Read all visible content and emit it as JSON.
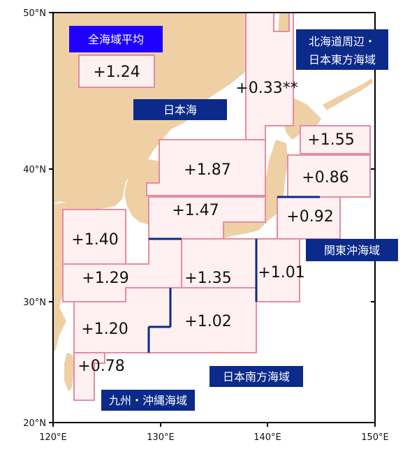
{
  "map": {
    "lat_labels": [
      "50°N",
      "40°N",
      "30°N",
      "20°N"
    ],
    "lon_labels": [
      "120°E",
      "130°E",
      "140°E",
      "150°E"
    ],
    "colors": {
      "land": "#efcfa4",
      "sea": "#ffffff",
      "region_fill": "#fff0f2",
      "region_stroke": "#e48da0",
      "label_bg": "#0b2a8a",
      "label_bg_strong": "#1f00ff",
      "label_text": "#ffffff"
    }
  },
  "labels": {
    "all_avg": "全海域平均",
    "japan_sea": "日本海",
    "hokkaido": [
      "北海道周辺・",
      "日本東方海域"
    ],
    "kanto": "関東沖海域",
    "south_japan": "日本南方海域",
    "kyushu": "九州・沖縄海域"
  },
  "values": {
    "all_avg": "+1.24",
    "v_033": "+0.33**",
    "v_155": "+1.55",
    "v_187": "+1.87",
    "v_086": "+0.86",
    "v_147": "+1.47",
    "v_092": "+0.92",
    "v_140": "+1.40",
    "v_129": "+1.29",
    "v_135": "+1.35",
    "v_101": "+1.01",
    "v_120": "+1.20",
    "v_102": "+1.02",
    "v_078": "+0.78"
  }
}
